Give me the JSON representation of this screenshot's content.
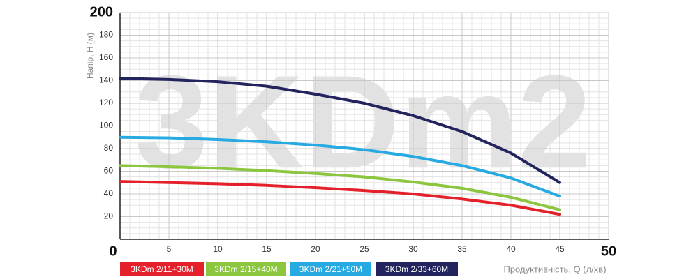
{
  "chart_data": {
    "type": "line",
    "watermark": "3KDm2",
    "y_label": "Напір, H (м)",
    "x_label": "Продуктивність, Q (л/хв)",
    "x": [
      0,
      5,
      10,
      15,
      20,
      25,
      30,
      35,
      40,
      45
    ],
    "series": [
      {
        "name": "3KDm 2/11+30M",
        "color": "#e4202a",
        "values": [
          51,
          50,
          49,
          47.5,
          45.5,
          43,
          40,
          35.5,
          30,
          22
        ]
      },
      {
        "name": "3KDm 2/15+40M",
        "color": "#8cc63f",
        "values": [
          65,
          64,
          62.5,
          60.5,
          58,
          55,
          50.5,
          45,
          37,
          26
        ]
      },
      {
        "name": "3KDm 2/21+50M",
        "color": "#27aae1",
        "values": [
          90,
          89.5,
          88,
          86,
          83,
          79,
          73,
          65,
          54,
          38
        ]
      },
      {
        "name": "3KDm 2/33+60M",
        "color": "#23245e",
        "values": [
          142,
          141,
          139,
          135,
          128,
          120,
          109,
          95,
          76,
          50
        ]
      }
    ],
    "xlim": [
      0,
      50
    ],
    "ylim": [
      0,
      200
    ],
    "xticks": [
      0,
      5,
      10,
      15,
      20,
      25,
      30,
      35,
      40,
      45,
      50
    ],
    "yticks": [
      20,
      40,
      60,
      80,
      100,
      120,
      140,
      160,
      180,
      200
    ],
    "grid": true
  }
}
